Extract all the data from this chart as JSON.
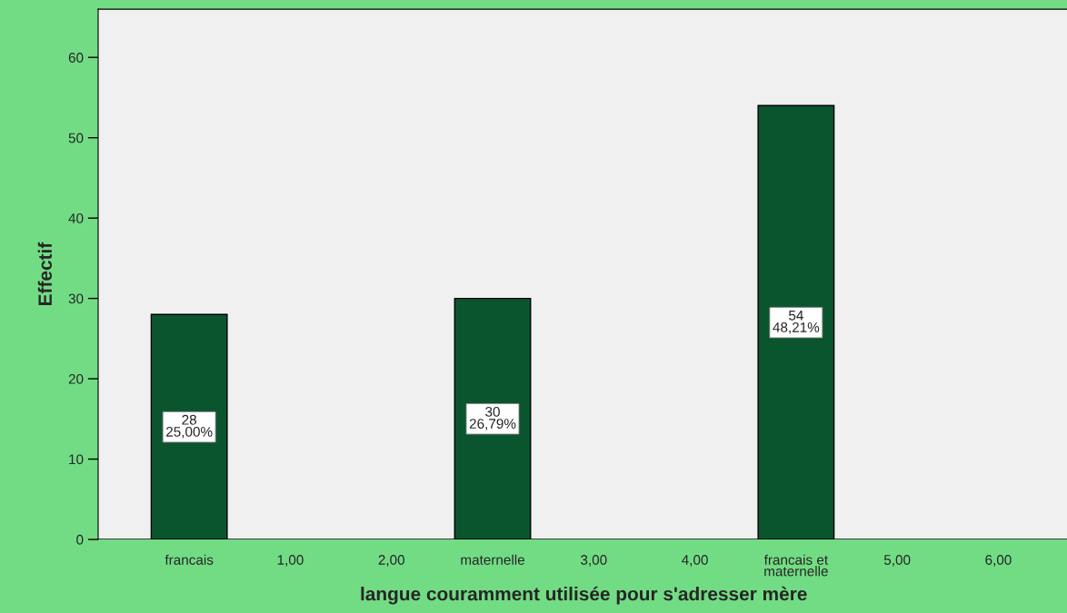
{
  "chart_data": {
    "type": "bar",
    "xlabel": "langue couramment utilisée pour s'adresser mère",
    "ylabel": "Effectif",
    "categories": [
      "francais",
      "1,00",
      "2,00",
      "maternelle",
      "3,00",
      "4,00",
      "francais et\nmaternelle",
      "5,00",
      "6,00"
    ],
    "values": [
      28,
      null,
      null,
      30,
      null,
      null,
      54,
      null,
      null
    ],
    "value_labels": [
      "28\n25,00%",
      null,
      null,
      "30\n26,79%",
      null,
      null,
      "54\n48,21%",
      null,
      null
    ],
    "color": "#0b552e",
    "ylim": [
      0,
      66
    ],
    "yticks": [
      0,
      10,
      20,
      30,
      40,
      50,
      60
    ],
    "grid": false,
    "legend": false
  }
}
